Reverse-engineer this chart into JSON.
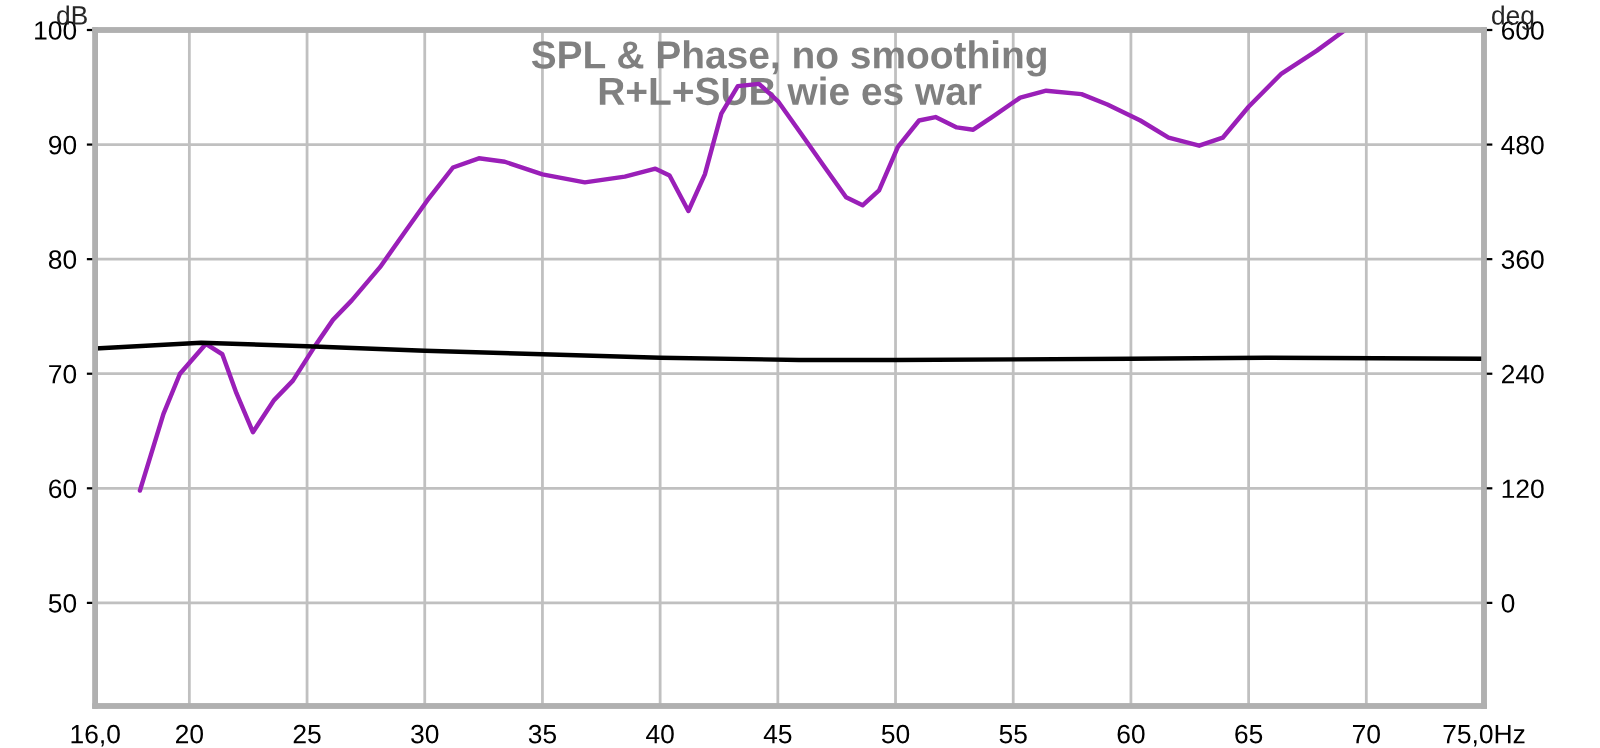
{
  "chart_data": {
    "type": "line",
    "title": "SPL & Phase, no smoothing\nR+L+SUB wie es war",
    "ylabel": "dB",
    "y2label": "deg",
    "xlim": [
      16,
      75
    ],
    "xticks": [
      {
        "value": 16,
        "label": "16,0"
      },
      20,
      25,
      30,
      35,
      40,
      45,
      50,
      55,
      60,
      65,
      70,
      {
        "value": 75,
        "label": "75,0Hz"
      }
    ],
    "ylim": [
      41,
      100
    ],
    "yticks": [
      50,
      60,
      70,
      80,
      90,
      100
    ],
    "y2lim": [
      -108,
      600
    ],
    "y2ticks": [
      0,
      120,
      240,
      360,
      480,
      600
    ],
    "grid": true,
    "series": [
      {
        "color": "#9a1fb8",
        "x": [
          17.9,
          18.9,
          19.6,
          20.7,
          21.4,
          22.0,
          22.7,
          23.6,
          24.4,
          25.3,
          26.1,
          26.9,
          28.1,
          29.2,
          30.1,
          31.2,
          32.3,
          33.4,
          35.0,
          36.8,
          38.5,
          39.8,
          40.4,
          41.2,
          41.9,
          42.6,
          43.3,
          44.2,
          45.0,
          45.9,
          47.0,
          47.9,
          48.6,
          49.3,
          50.1,
          51.0,
          51.7,
          52.6,
          53.3,
          54.1,
          55.3,
          56.4,
          57.9,
          59.0,
          60.4,
          61.6,
          62.9,
          63.9,
          65.0,
          66.4,
          67.9,
          69.1
        ],
        "values": [
          59.8,
          66.5,
          70.0,
          72.6,
          71.7,
          68.3,
          64.9,
          67.7,
          69.4,
          72.3,
          74.7,
          76.4,
          79.3,
          82.5,
          85.1,
          88.0,
          88.8,
          88.5,
          87.4,
          86.7,
          87.2,
          87.9,
          87.3,
          84.2,
          87.4,
          92.7,
          95.1,
          95.3,
          93.8,
          91.2,
          88.0,
          85.4,
          84.7,
          86.0,
          89.8,
          92.1,
          92.4,
          91.5,
          91.3,
          92.4,
          94.1,
          94.7,
          94.4,
          93.5,
          92.1,
          90.6,
          89.9,
          90.6,
          93.3,
          96.2,
          98.2,
          100.0
        ]
      },
      {
        "color": "#000000",
        "x": [
          16,
          20.5,
          25,
          30,
          35,
          40,
          45.9,
          50,
          60,
          65.7,
          75
        ],
        "values": [
          72.2,
          72.7,
          72.4,
          72.0,
          71.7,
          71.4,
          71.2,
          71.2,
          71.3,
          71.4,
          71.3
        ]
      }
    ]
  }
}
